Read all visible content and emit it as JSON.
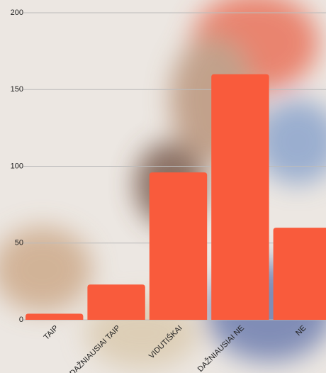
{
  "chart_data": {
    "type": "bar",
    "categories": [
      "TAIP",
      "DAŽNIAUSIAI TAIP",
      "VIDUTIŠKAI",
      "DAŽNIAUSIAI NE",
      "NE"
    ],
    "values": [
      4,
      23,
      96,
      160,
      60
    ],
    "color": "#f95b3c",
    "ylim": [
      0,
      200
    ],
    "yticks": [
      0,
      50,
      100,
      150,
      200
    ],
    "grid": true
  }
}
